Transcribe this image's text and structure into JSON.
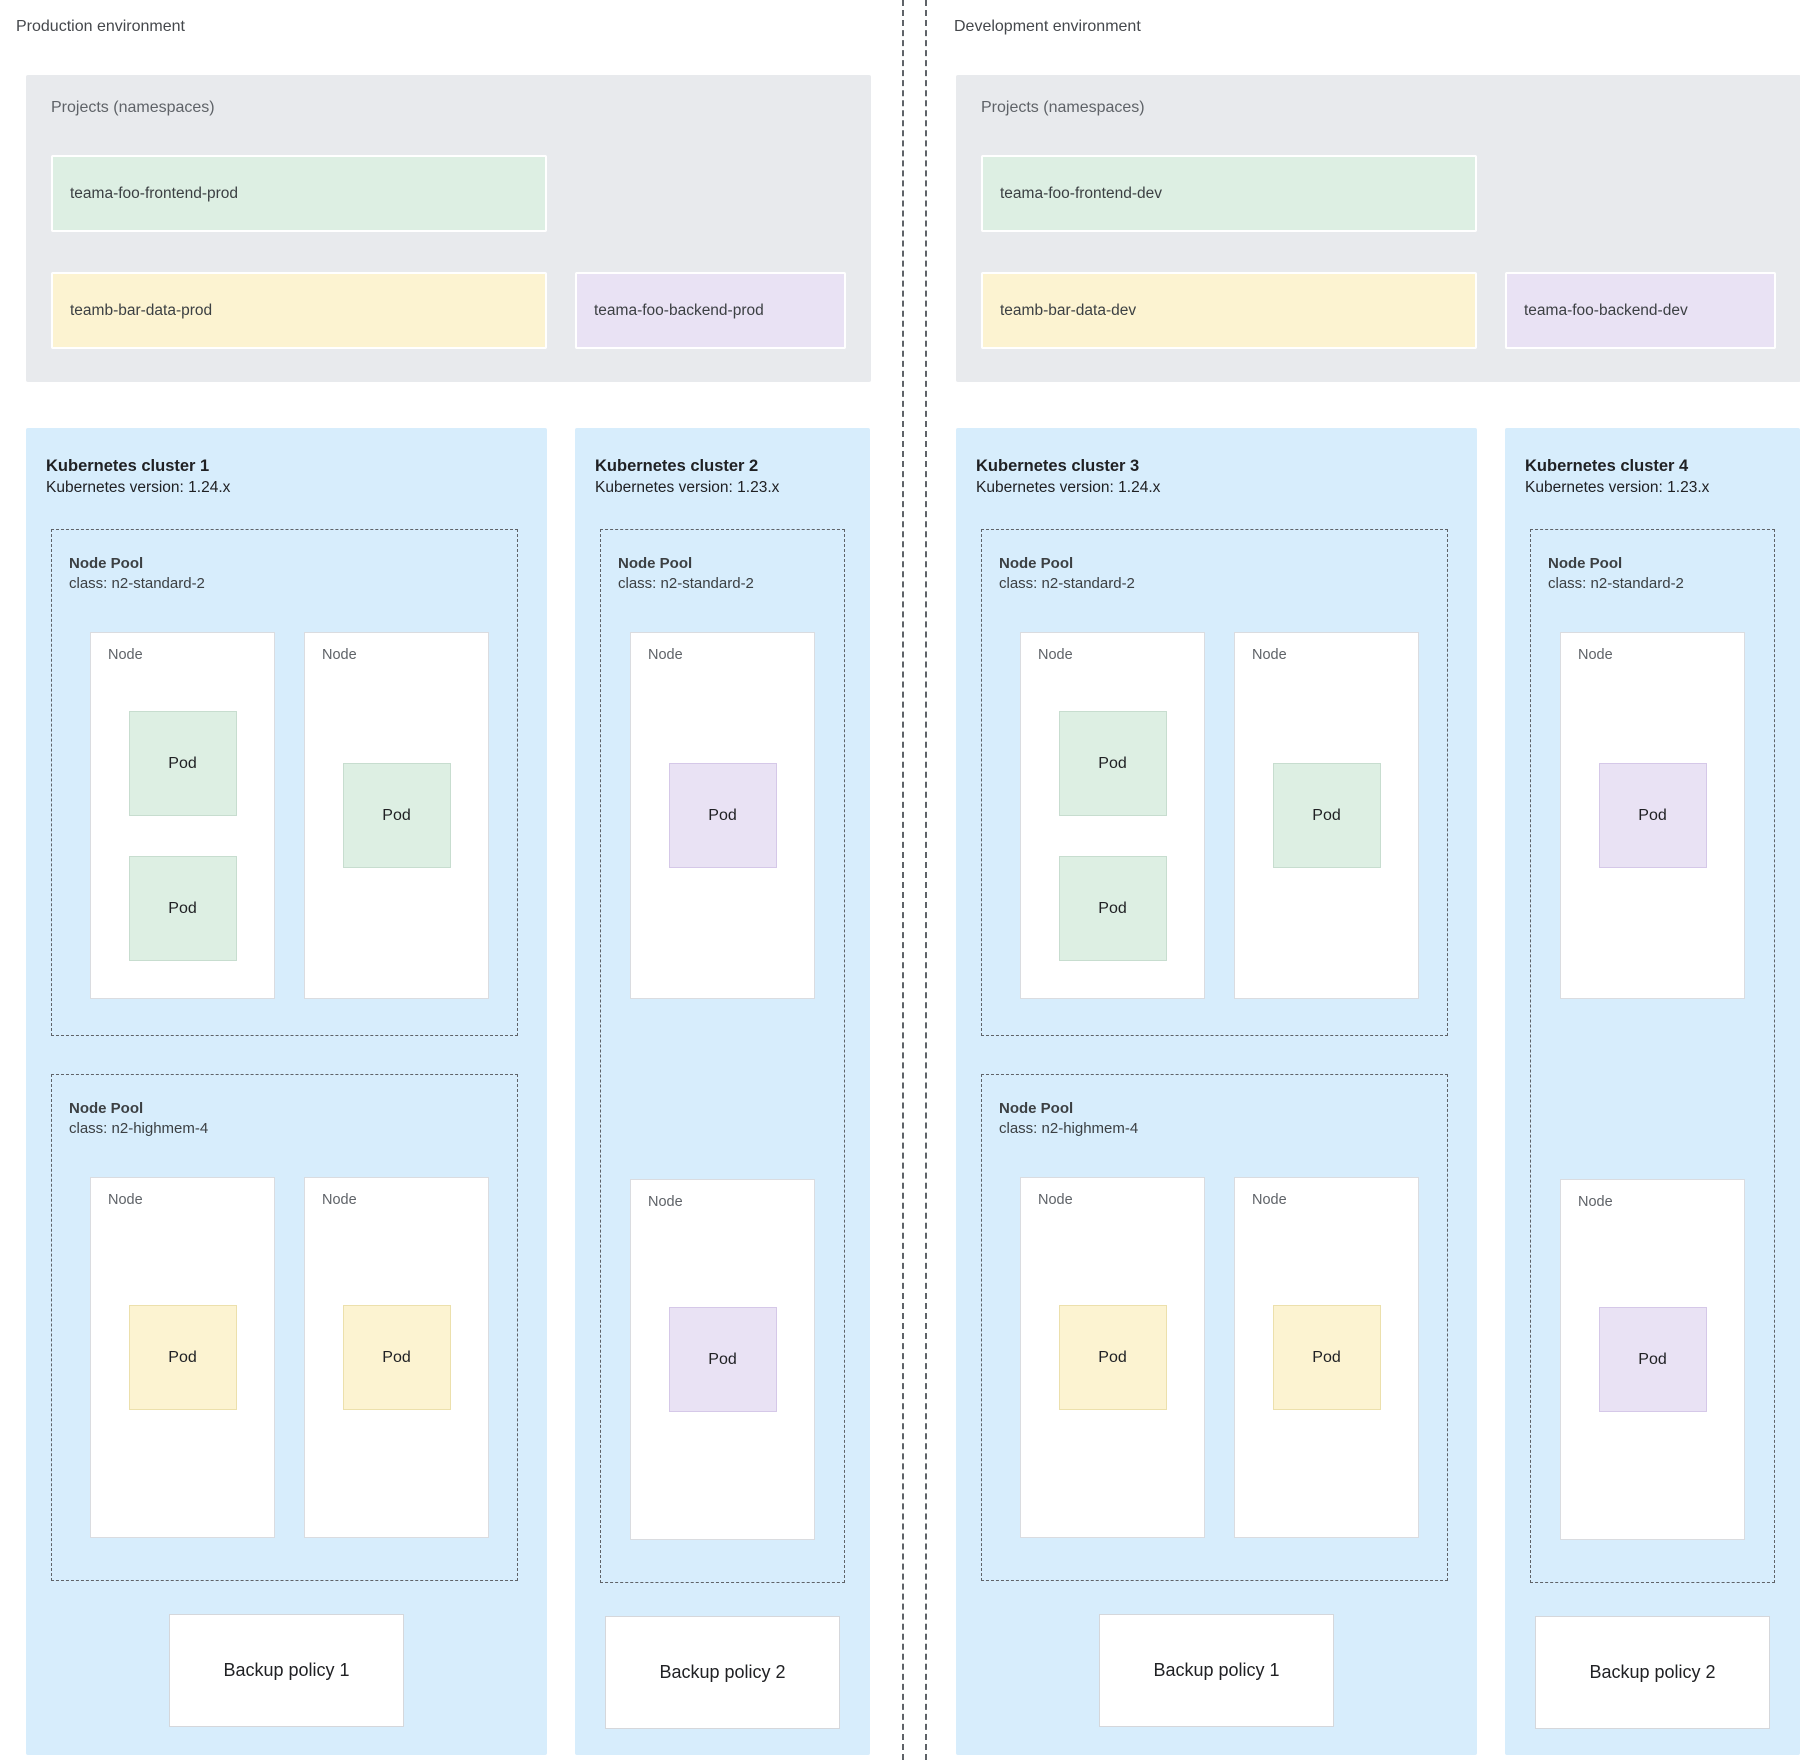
{
  "labels": {
    "node": "Node",
    "pod": "Pod"
  },
  "palette": {
    "cluster_bg": "#d7edfc",
    "projects_bg": "#e8eaed",
    "namespace_green": "#ddefe3",
    "namespace_yellow": "#fcf3d1",
    "namespace_purple": "#e9e2f4",
    "dashed_border": "#5f6368"
  },
  "environments": [
    {
      "name": "Production environment",
      "projects": {
        "title": "Projects (namespaces)",
        "namespaces": [
          {
            "label": "teama-foo-frontend-prod",
            "color": "#ddefe3"
          },
          {
            "label": "teamb-bar-data-prod",
            "color": "#fcf3d1"
          },
          {
            "label": "teama-foo-backend-prod",
            "color": "#e9e2f4"
          }
        ]
      },
      "clusters": [
        {
          "title": "Kubernetes cluster 1",
          "version": "Kubernetes version: 1.24.x",
          "node_pools": [
            {
              "name": "Node Pool",
              "machine_class": "class: n2-standard-2"
            },
            {
              "name": "Node Pool",
              "machine_class": "class: n2-highmem-4"
            }
          ],
          "backup_policy": "Backup policy 1"
        },
        {
          "title": "Kubernetes cluster 2",
          "version": "Kubernetes version: 1.23.x",
          "node_pools": [
            {
              "name": "Node Pool",
              "machine_class": "class: n2-standard-2"
            }
          ],
          "backup_policy": "Backup policy 2"
        }
      ]
    },
    {
      "name": "Development environment",
      "projects": {
        "title": "Projects (namespaces)",
        "namespaces": [
          {
            "label": "teama-foo-frontend-dev",
            "color": "#ddefe3"
          },
          {
            "label": "teamb-bar-data-dev",
            "color": "#fcf3d1"
          },
          {
            "label": "teama-foo-backend-dev",
            "color": "#e9e2f4"
          }
        ]
      },
      "clusters": [
        {
          "title": "Kubernetes cluster 3",
          "version": "Kubernetes version: 1.24.x",
          "node_pools": [
            {
              "name": "Node Pool",
              "machine_class": "class: n2-standard-2"
            },
            {
              "name": "Node Pool",
              "machine_class": "class: n2-highmem-4"
            }
          ],
          "backup_policy": "Backup policy 1"
        },
        {
          "title": "Kubernetes cluster 4",
          "version": "Kubernetes version: 1.23.x",
          "node_pools": [
            {
              "name": "Node Pool",
              "machine_class": "class: n2-standard-2"
            }
          ],
          "backup_policy": "Backup policy 2"
        }
      ]
    }
  ]
}
